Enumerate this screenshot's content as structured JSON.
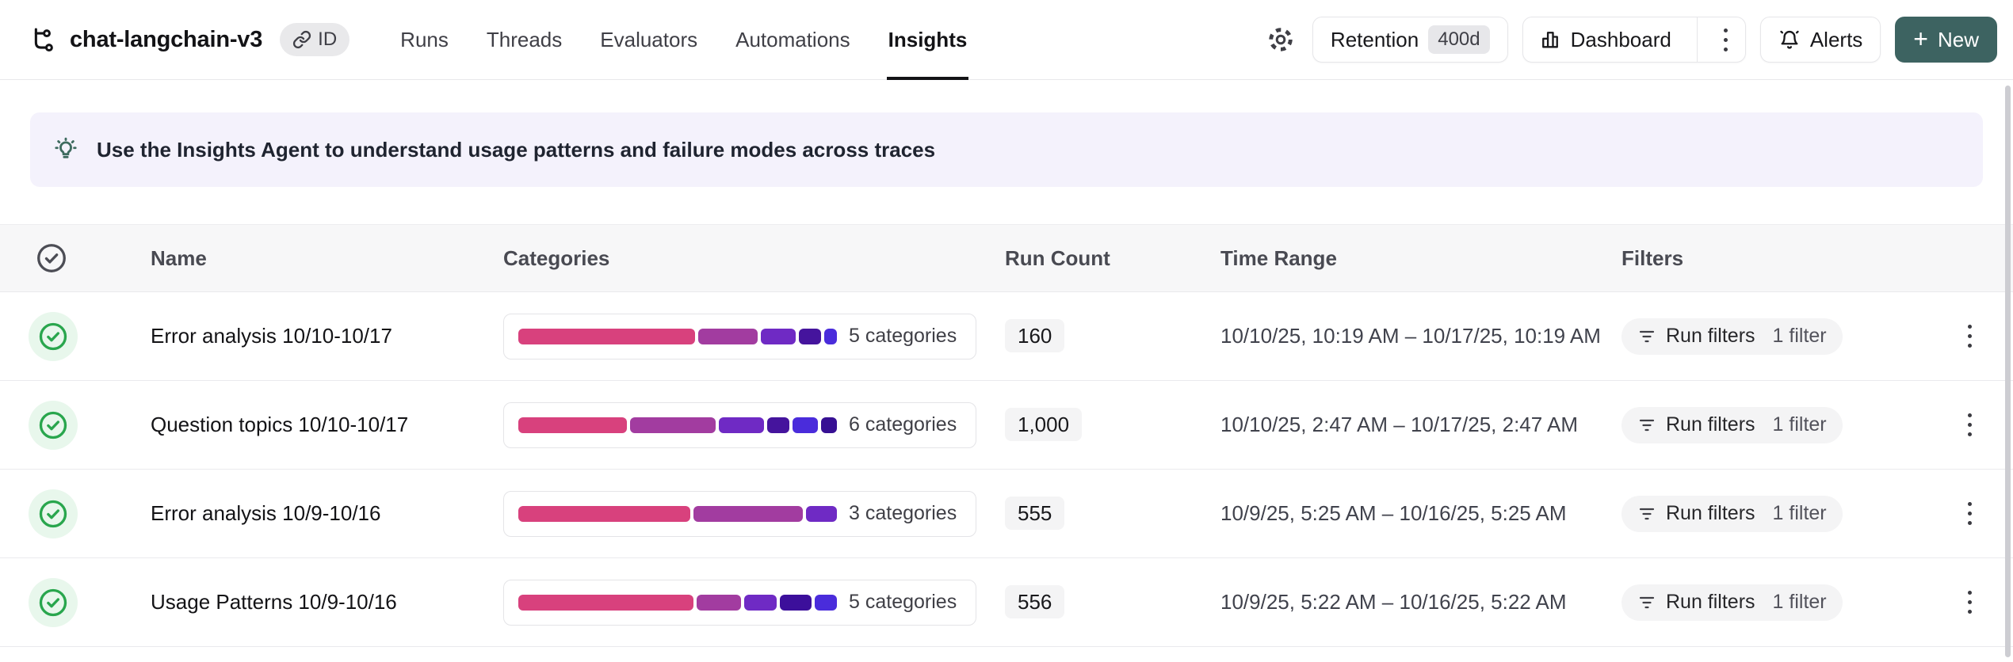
{
  "topbar": {
    "title": "chat-langchain-v3",
    "id_badge_label": "ID",
    "tabs": [
      {
        "label": "Runs",
        "active": false
      },
      {
        "label": "Threads",
        "active": false
      },
      {
        "label": "Evaluators",
        "active": false
      },
      {
        "label": "Automations",
        "active": false
      },
      {
        "label": "Insights",
        "active": true
      }
    ],
    "retention_label": "Retention",
    "retention_badge": "400d",
    "dashboard_label": "Dashboard",
    "alerts_label": "Alerts",
    "new_plus": "+",
    "new_label": "New"
  },
  "banner": {
    "icon": "lightbulb-icon",
    "text": "Use the Insights Agent to understand usage patterns and failure modes across traces"
  },
  "table": {
    "columns": {
      "name": "Name",
      "categories": "Categories",
      "run_count": "Run Count",
      "time_range": "Time Range",
      "filters": "Filters"
    },
    "rows": [
      {
        "name": "Error analysis 10/10-10/17",
        "categories_label": "5 categories",
        "segments": [
          {
            "color": "#D8417D",
            "pct": 56
          },
          {
            "color": "#A23CA0",
            "pct": 19
          },
          {
            "color": "#6F2AC4",
            "pct": 11
          },
          {
            "color": "#45149D",
            "pct": 7
          },
          {
            "color": "#4A2CDB",
            "pct": 4
          }
        ],
        "run_count": "160",
        "time_range": "10/10/25, 10:19 AM – 10/17/25, 10:19 AM",
        "filters_label": "Run filters",
        "filters_count": "1 filter"
      },
      {
        "name": "Question topics 10/10-10/17",
        "categories_label": "6 categories",
        "segments": [
          {
            "color": "#D8417D",
            "pct": 34
          },
          {
            "color": "#A23CA0",
            "pct": 27
          },
          {
            "color": "#6F2AC4",
            "pct": 14
          },
          {
            "color": "#45149D",
            "pct": 7
          },
          {
            "color": "#4A2CDB",
            "pct": 8
          },
          {
            "color": "#371093",
            "pct": 5
          }
        ],
        "run_count": "1,000",
        "time_range": "10/10/25, 2:47 AM – 10/17/25, 2:47 AM",
        "filters_label": "Run filters",
        "filters_count": "1 filter"
      },
      {
        "name": "Error analysis 10/9-10/16",
        "categories_label": "3 categories",
        "segments": [
          {
            "color": "#D8417D",
            "pct": 55
          },
          {
            "color": "#A23CA0",
            "pct": 35
          },
          {
            "color": "#6F2AC4",
            "pct": 10
          }
        ],
        "run_count": "555",
        "time_range": "10/9/25, 5:25 AM – 10/16/25, 5:25 AM",
        "filters_label": "Run filters",
        "filters_count": "1 filter"
      },
      {
        "name": "Usage Patterns 10/9-10/16",
        "categories_label": "5 categories",
        "segments": [
          {
            "color": "#D8417D",
            "pct": 55
          },
          {
            "color": "#A23CA0",
            "pct": 14
          },
          {
            "color": "#6F2AC4",
            "pct": 10
          },
          {
            "color": "#3C0F9B",
            "pct": 10
          },
          {
            "color": "#4A2CDB",
            "pct": 7
          }
        ],
        "run_count": "556",
        "time_range": "10/9/25, 5:22 AM – 10/16/25, 5:22 AM",
        "filters_label": "Run filters",
        "filters_count": "1 filter"
      }
    ]
  },
  "colors": {
    "accent_teal": "#3D6361",
    "banner_bg": "#F4F2FC",
    "pill_bg": "#F4F4F5",
    "check_green": "#29A64D"
  }
}
